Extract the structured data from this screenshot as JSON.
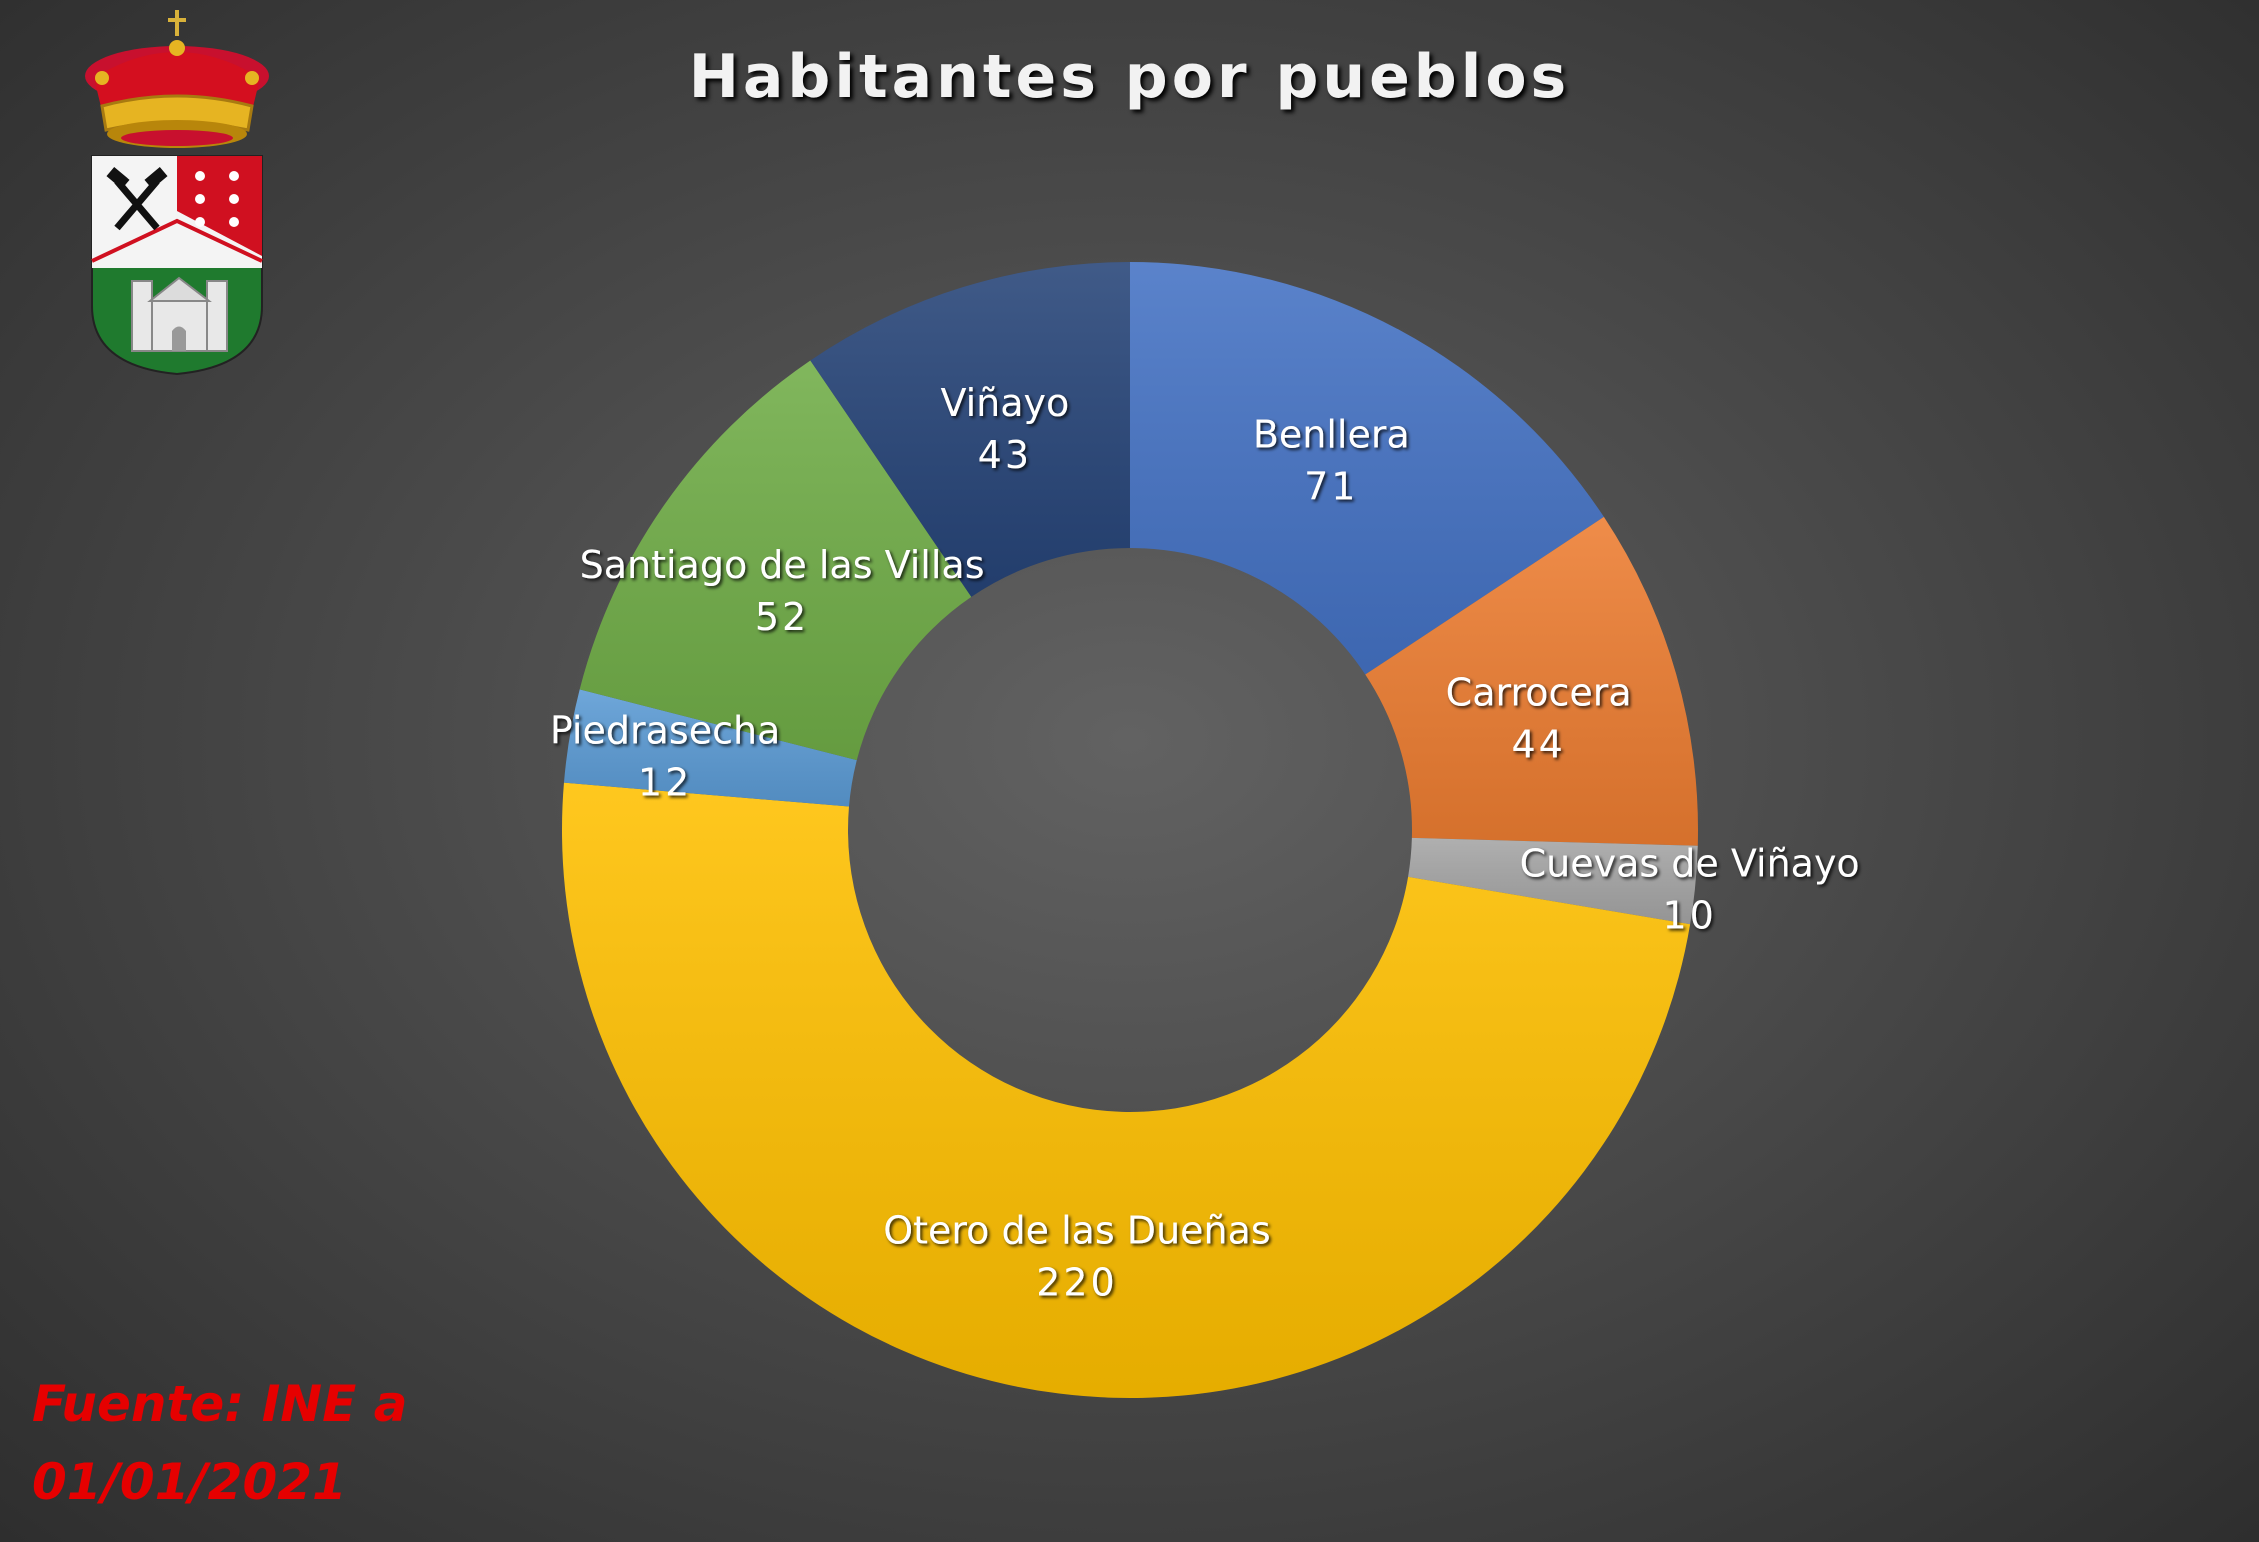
{
  "chart_data": {
    "type": "pie",
    "donut": true,
    "title": "Habitantes por pueblos",
    "start_angle_deg": 0,
    "direction": "clockwise",
    "slices": [
      {
        "label": "Benllera",
        "value": 71,
        "color": "#4472c4"
      },
      {
        "label": "Carrocera",
        "value": 44,
        "color": "#ed7d31"
      },
      {
        "label": "Cuevas de Viñayo",
        "value": 10,
        "color": "#a5a5a5"
      },
      {
        "label": "Otero de las Dueñas",
        "value": 220,
        "color": "#ffc000"
      },
      {
        "label": "Piedrasecha",
        "value": 12,
        "color": "#5b9bd5"
      },
      {
        "label": "Santiago de las Villas",
        "value": 52,
        "color": "#70ad47"
      },
      {
        "label": "Viñayo",
        "value": 43,
        "color": "#264478"
      }
    ]
  },
  "source": {
    "line1": "Fuente: INE a",
    "line2": "01/01/2021"
  },
  "logo": {
    "description_icon": "coat-of-arms-icon"
  }
}
